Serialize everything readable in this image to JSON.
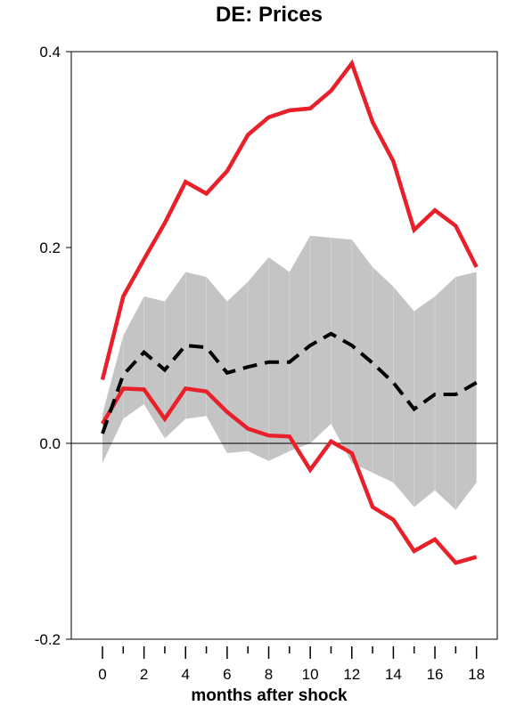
{
  "chart_data": {
    "type": "line",
    "title": "DE: Prices",
    "xlabel": "months after shock",
    "ylabel": "",
    "xlim": [
      -1.5,
      19
    ],
    "ylim": [
      -0.2,
      0.4
    ],
    "x": [
      0,
      1,
      2,
      3,
      4,
      5,
      6,
      7,
      8,
      9,
      10,
      11,
      12,
      13,
      14,
      15,
      16,
      17,
      18
    ],
    "x_ticks": [
      0,
      1,
      2,
      3,
      4,
      5,
      6,
      7,
      8,
      9,
      10,
      11,
      12,
      13,
      14,
      15,
      16,
      17,
      18
    ],
    "x_tick_labels": [
      "0",
      "2",
      "4",
      "6",
      "8",
      "10",
      "12",
      "14",
      "16",
      "18"
    ],
    "y_ticks": [
      -0.2,
      0.0,
      0.2,
      0.4
    ],
    "y_tick_labels": [
      "-0.2",
      "0.0",
      "0.2",
      "0.4"
    ],
    "zero_line": true,
    "grid": false,
    "band": {
      "upper": [
        0.03,
        0.11,
        0.15,
        0.145,
        0.175,
        0.17,
        0.145,
        0.165,
        0.19,
        0.175,
        0.212,
        0.21,
        0.208,
        0.18,
        0.16,
        0.135,
        0.15,
        0.17,
        0.175
      ],
      "lower": [
        -0.02,
        0.025,
        0.04,
        0.005,
        0.025,
        0.028,
        -0.01,
        -0.008,
        -0.018,
        -0.008,
        0.0,
        0.02,
        -0.02,
        -0.03,
        -0.04,
        -0.065,
        -0.048,
        -0.068,
        -0.04
      ],
      "color": "#c4c4c4"
    },
    "series": [
      {
        "role": "estimate",
        "style": "dashed",
        "color": "#000000",
        "values": [
          0.01,
          0.07,
          0.093,
          0.075,
          0.1,
          0.098,
          0.072,
          0.078,
          0.083,
          0.083,
          0.1,
          0.112,
          0.1,
          0.082,
          0.062,
          0.035,
          0.05,
          0.05,
          0.062
        ]
      },
      {
        "role": "upper-bound",
        "style": "solid",
        "color": "#e8202a",
        "values": [
          0.065,
          0.15,
          0.188,
          0.225,
          0.267,
          0.255,
          0.278,
          0.315,
          0.333,
          0.34,
          0.342,
          0.36,
          0.388,
          0.328,
          0.288,
          0.218,
          0.238,
          0.222,
          0.18
        ]
      },
      {
        "role": "lower-bound",
        "style": "solid",
        "color": "#e8202a",
        "values": [
          0.02,
          0.056,
          0.055,
          0.025,
          0.056,
          0.053,
          0.032,
          0.015,
          0.008,
          0.007,
          -0.027,
          0.002,
          -0.01,
          -0.065,
          -0.078,
          -0.11,
          -0.098,
          -0.122,
          -0.116
        ]
      }
    ]
  }
}
